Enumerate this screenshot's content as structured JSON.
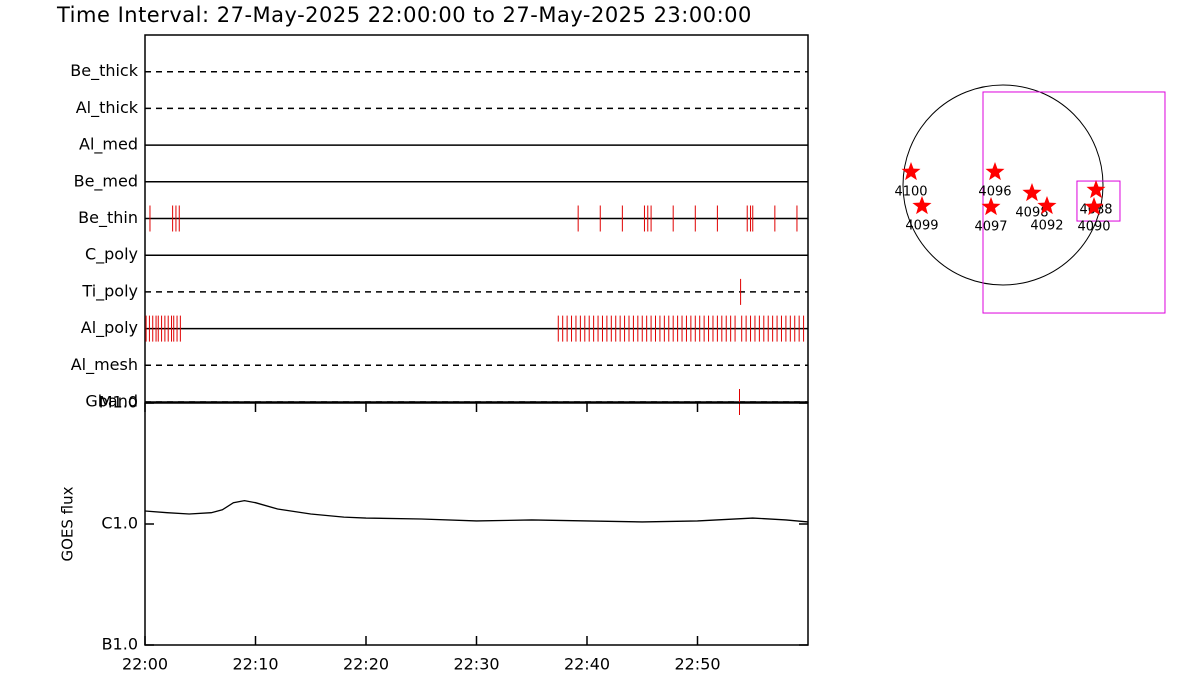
{
  "title": "Time Interval: 27-May-2025 22:00:00 to 27-May-2025 23:00:00",
  "chart_data": [
    {
      "type": "event",
      "categories": [
        "Be_thick",
        "Al_thick",
        "Al_med",
        "Be_med",
        "Be_thin",
        "C_poly",
        "Ti_poly",
        "Al_poly",
        "Al_mesh",
        "Gband"
      ],
      "line_styles": [
        "dashed",
        "dashed",
        "solid",
        "solid",
        "solid",
        "solid",
        "dashed",
        "solid",
        "dashed",
        "dashed"
      ],
      "color": "#e00000",
      "xlim": [
        0,
        60
      ],
      "events": [
        [],
        [],
        [],
        [],
        [
          0.45,
          2.5,
          2.8,
          3.1,
          39.2,
          41.2,
          43.2,
          45.2,
          45.5,
          45.8,
          47.8,
          49.8,
          51.8,
          54.5,
          54.8,
          55.0,
          57.0,
          59.0
        ],
        [],
        [
          53.9
        ],
        [
          0.1,
          0.4,
          0.7,
          1.0,
          1.2,
          1.5,
          1.8,
          2.1,
          2.4,
          2.6,
          2.9,
          3.2,
          37.4,
          37.8,
          38.2,
          38.6,
          39.0,
          39.4,
          39.8,
          40.2,
          40.6,
          41.0,
          41.4,
          41.8,
          42.2,
          42.6,
          43.0,
          43.4,
          43.8,
          44.2,
          44.6,
          45.0,
          45.4,
          45.8,
          46.2,
          46.6,
          47.0,
          47.4,
          47.8,
          48.2,
          48.6,
          49.0,
          49.4,
          49.8,
          50.2,
          50.6,
          51.0,
          51.4,
          51.8,
          52.2,
          52.6,
          53.0,
          53.4,
          54.0,
          54.4,
          54.8,
          55.2,
          55.6,
          56.0,
          56.4,
          56.8,
          57.2,
          57.6,
          58.0,
          58.4,
          58.8,
          59.2,
          59.6
        ],
        [],
        [
          53.8
        ]
      ]
    },
    {
      "type": "line",
      "ylabel": "GOES flux",
      "log_scale": true,
      "color": "#000000",
      "xlim": [
        0,
        60
      ],
      "xticks": [
        {
          "value": 0,
          "label": "22:00"
        },
        {
          "value": 10,
          "label": "22:10"
        },
        {
          "value": 20,
          "label": "22:20"
        },
        {
          "value": 30,
          "label": "22:30"
        },
        {
          "value": 40,
          "label": "22:40"
        },
        {
          "value": 50,
          "label": "22:50"
        }
      ],
      "ylim": [
        1e-07,
        1e-05
      ],
      "yticks": [
        {
          "value": 1e-07,
          "label": "B1.0"
        },
        {
          "value": 1e-06,
          "label": "C1.0"
        },
        {
          "value": 1e-05,
          "label": "M1.0"
        }
      ],
      "x": [
        0,
        2,
        4,
        6,
        7,
        8,
        9,
        10,
        12,
        15,
        18,
        20,
        25,
        30,
        35,
        40,
        45,
        50,
        55,
        58,
        60
      ],
      "values": [
        1.28e-06,
        1.24e-06,
        1.21e-06,
        1.24e-06,
        1.31e-06,
        1.5e-06,
        1.56e-06,
        1.5e-06,
        1.33e-06,
        1.21e-06,
        1.14e-06,
        1.12e-06,
        1.1e-06,
        1.06e-06,
        1.08e-06,
        1.06e-06,
        1.04e-06,
        1.06e-06,
        1.12e-06,
        1.08e-06,
        1.04e-06
      ]
    },
    {
      "type": "map",
      "solar_radius": 960,
      "color": "#ff0000",
      "box_color": "#dd00dd",
      "regions": [
        {
          "label": "4100",
          "x": -883,
          "y": 125
        },
        {
          "label": "4099",
          "x": -778,
          "y": -202
        },
        {
          "label": "4096",
          "x": -77,
          "y": 125
        },
        {
          "label": "4097",
          "x": -115,
          "y": -211
        },
        {
          "label": "4098",
          "x": 278,
          "y": -77
        },
        {
          "label": "4092",
          "x": 422,
          "y": -202
        },
        {
          "label": "4088",
          "x": 893,
          "y": -48
        },
        {
          "label": "4090",
          "x": 874,
          "y": -211
        }
      ],
      "boxes": [
        {
          "xlim": [
            -192,
            1555
          ],
          "ylim": [
            -1229,
            893
          ]
        },
        {
          "xlim": [
            710,
            1123
          ],
          "ylim": [
            -346,
            38
          ]
        }
      ]
    }
  ]
}
